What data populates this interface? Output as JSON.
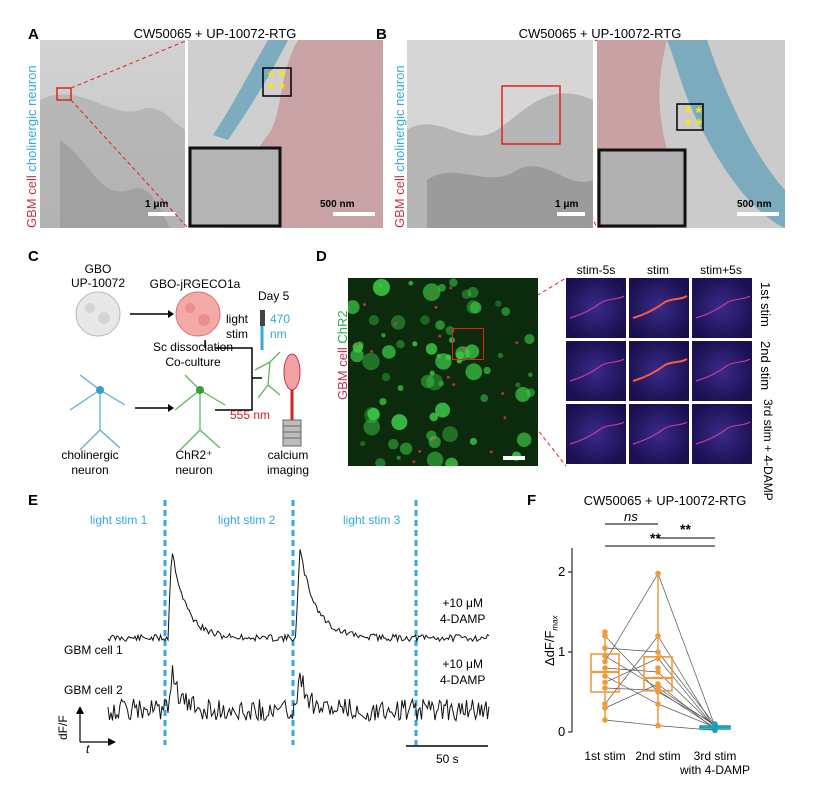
{
  "panels": {
    "A": {
      "label": "A",
      "title": "CW50065 + UP-10072-RTG",
      "ylabel_gbm": "GBM cell",
      "ylabel_neuron": "cholinergic neuron",
      "scale_left": "1 μm",
      "scale_right": "500 nm",
      "marks": "* *"
    },
    "B": {
      "label": "B",
      "title": "CW50065 + UP-10072-RTG",
      "ylabel_gbm": "GBM cell",
      "ylabel_neuron": "cholinergic neuron",
      "scale_left": "1 μm",
      "scale_right": "500 nm",
      "marks": "* *"
    },
    "C": {
      "label": "C",
      "gbo": "GBO",
      "gbo_id": "UP-10072",
      "gbo_reporter": "GBO-jRGECO1a",
      "sc_dissociation": "Sc dissociation",
      "coculture": "Co-culture",
      "day": "Day 5",
      "light_stim": "light stim",
      "light_nm": "470 nm",
      "excite_nm": "555 nm",
      "cholinergic": "cholinergic neuron",
      "chr2_neuron": "ChR2⁺ neuron",
      "calcium": "calcium imaging"
    },
    "D": {
      "label": "D",
      "ylabel_gbm": "GBM cell",
      "ylabel_chr2": "ChR2",
      "col_headers": [
        "stim-5s",
        "stim",
        "stim+5s"
      ],
      "row_labels": [
        "1st stim",
        "2nd stim",
        "3rd stim + 4-DAMP"
      ]
    },
    "E": {
      "label": "E",
      "stims": [
        "light stim 1",
        "light stim 2",
        "light stim 3"
      ],
      "cells": [
        "GBM cell 1",
        "GBM cell 2"
      ],
      "drug_line1": "+10 μM",
      "drug_line2": "4-DAMP",
      "y_axis": "dF/F",
      "x_axis": "t",
      "scalebar": "50 s"
    },
    "F": {
      "label": "F",
      "title": "CW50065 + UP-10072-RTG",
      "ylabel": "ΔdF/F",
      "ylabel_sub": "max",
      "sig_ns": "ns",
      "sig_2": "**",
      "sig_3": "**"
    }
  },
  "colors": {
    "stim_blue": "#33a9dd",
    "gbm_red": "#c8324b",
    "chr2_green": "#2bb24c",
    "box_orange": "#f09a3c",
    "box_teal": "#1ea0b4"
  },
  "chart_data": {
    "type": "box",
    "title": "CW50065 + UP-10072-RTG",
    "ylabel": "ΔdF/Fmax",
    "categories": [
      "1st stim",
      "2nd stim",
      "3rd stim with 4-DAMP"
    ],
    "yticks": [
      "0",
      "1",
      "2"
    ],
    "ylim": [
      0,
      2.3
    ],
    "series": [
      {
        "values": [
          0.15,
          0.3,
          0.35,
          0.55,
          0.62,
          0.7,
          0.8,
          0.88,
          0.95,
          1.05,
          1.2,
          1.25
        ]
      },
      {
        "values": [
          0.08,
          0.35,
          0.5,
          0.52,
          0.55,
          0.6,
          0.75,
          0.8,
          0.92,
          1.0,
          1.2,
          1.98
        ]
      },
      {
        "values": [
          0.02,
          0.03,
          0.04,
          0.05,
          0.05,
          0.06,
          0.06,
          0.07,
          0.08,
          0.09,
          0.1
        ]
      }
    ]
  }
}
